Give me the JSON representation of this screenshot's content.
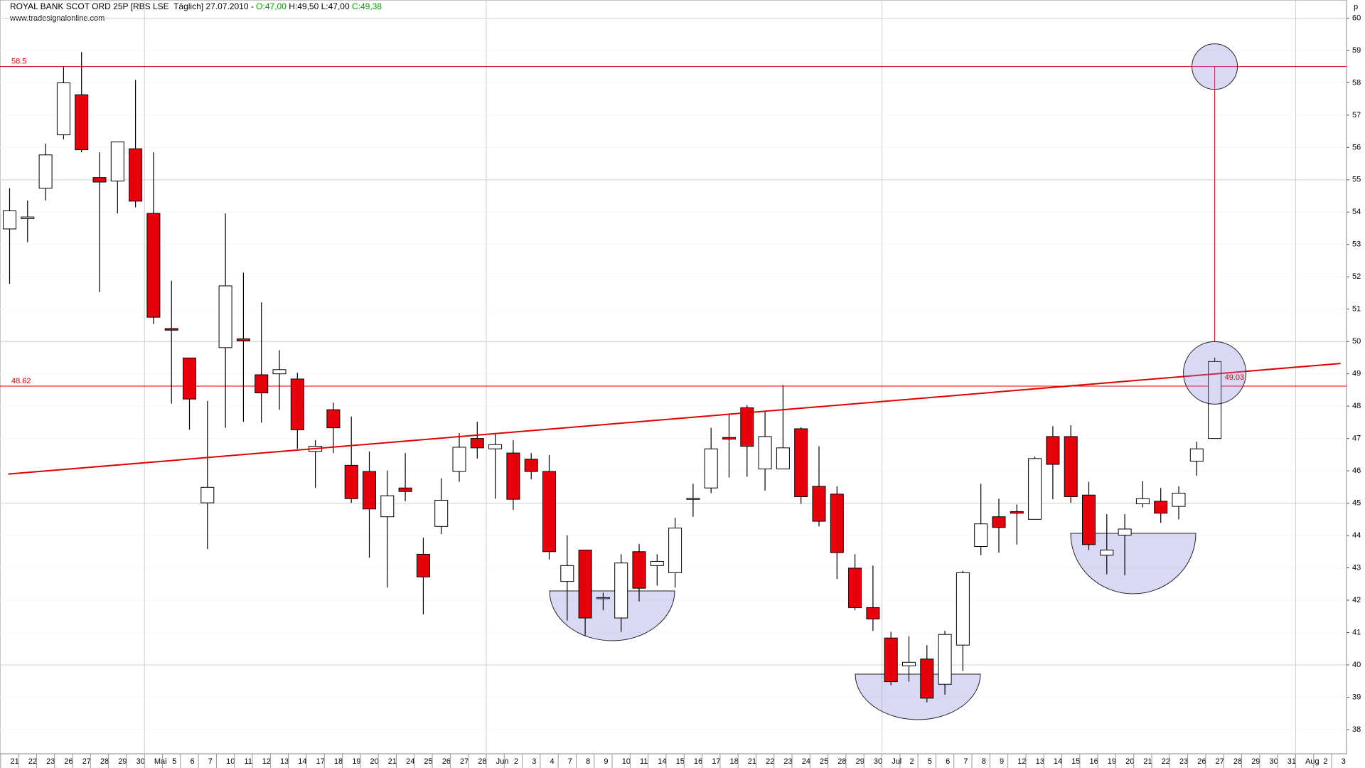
{
  "chart_data": {
    "type": "candlestick",
    "title": "ROYAL BANK SCOT ORD 25P [RBS LSE  Täglich] 27.07.2010 -",
    "ohlc_labels": [
      "O:47,00",
      "H:49,50",
      "L:47,00",
      "C:49,38"
    ],
    "subtitle": "www.tradesignalonline.com",
    "y_axis_label": "p",
    "categories": [
      "21",
      "22",
      "23",
      "26",
      "27",
      "28",
      "29",
      "30",
      "Mai",
      "5",
      "6",
      "7",
      "10",
      "11",
      "12",
      "13",
      "14",
      "17",
      "18",
      "19",
      "20",
      "21",
      "24",
      "25",
      "26",
      "27",
      "28",
      "Jun",
      "2",
      "3",
      "4",
      "7",
      "8",
      "9",
      "10",
      "11",
      "14",
      "15",
      "16",
      "17",
      "18",
      "21",
      "22",
      "23",
      "24",
      "25",
      "28",
      "29",
      "30",
      "Jul",
      "2",
      "5",
      "6",
      "7",
      "8",
      "9",
      "12",
      "13",
      "14",
      "15",
      "16",
      "19",
      "20",
      "21",
      "22",
      "23",
      "26",
      "27",
      "28",
      "29",
      "30",
      "31",
      "Aug",
      "2",
      "3"
    ],
    "open": [
      53.48,
      53.8,
      54.74,
      56.39,
      57.63,
      55.07,
      54.96,
      55.96,
      53.96,
      50.4,
      49.49,
      45.01,
      49.81,
      50.08,
      48.97,
      49.0,
      48.84,
      46.6,
      47.89,
      46.17,
      45.98,
      44.58,
      45.47,
      43.42,
      44.28,
      45.98,
      47.0,
      46.68,
      46.55,
      46.36,
      45.98,
      42.58,
      43.55,
      42.05,
      41.45,
      43.5,
      43.07,
      42.85,
      45.12,
      45.47,
      47.03,
      47.95,
      46.06,
      46.06,
      47.3,
      45.52,
      45.28,
      42.99,
      41.77,
      40.83,
      39.97,
      40.18,
      39.4,
      40.61,
      43.66,
      44.58,
      44.74,
      44.5,
      47.06,
      47.06,
      45.25,
      43.39,
      44.01,
      44.98,
      45.06,
      44.9,
      46.3,
      47.0,
      null,
      null,
      null,
      null,
      null,
      null,
      null
    ],
    "high": [
      54.74,
      54.36,
      56.12,
      58.49,
      58.95,
      55.85,
      56.17,
      58.09,
      55.85,
      51.88,
      49.49,
      48.16,
      53.96,
      52.13,
      51.21,
      49.73,
      49.03,
      46.95,
      48.11,
      47.68,
      46.6,
      46.01,
      46.55,
      43.93,
      45.77,
      47.17,
      47.52,
      47.17,
      46.95,
      46.55,
      46.49,
      44.01,
      43.55,
      42.23,
      43.42,
      43.74,
      43.42,
      44.55,
      45.6,
      47.33,
      47.76,
      48.03,
      47.84,
      48.65,
      47.35,
      46.76,
      45.52,
      43.42,
      43.07,
      41.02,
      40.88,
      40.61,
      41.05,
      42.91,
      45.6,
      45.14,
      44.96,
      46.44,
      47.38,
      47.41,
      45.66,
      44.66,
      44.66,
      45.68,
      45.47,
      45.52,
      46.9,
      49.5,
      null,
      null,
      null,
      null,
      null,
      null,
      null
    ],
    "low": [
      51.78,
      53.07,
      54.36,
      56.25,
      55.85,
      51.53,
      53.96,
      54.15,
      50.54,
      48.08,
      47.27,
      43.58,
      47.33,
      47.52,
      47.49,
      47.89,
      46.68,
      45.47,
      46.55,
      45.01,
      43.31,
      42.39,
      45.06,
      41.56,
      44.04,
      45.66,
      46.38,
      45.14,
      44.79,
      45.74,
      43.26,
      41.37,
      40.91,
      41.69,
      41.02,
      41.96,
      42.45,
      42.39,
      44.58,
      45.31,
      45.79,
      45.82,
      45.39,
      46.06,
      44.98,
      44.28,
      42.66,
      41.69,
      41.05,
      39.37,
      39.48,
      38.84,
      39.08,
      39.81,
      43.39,
      43.47,
      43.72,
      44.5,
      45.12,
      45.01,
      43.55,
      42.8,
      42.77,
      44.87,
      44.39,
      44.5,
      45.85,
      47.0,
      null,
      null,
      null,
      null,
      null,
      null,
      null
    ],
    "close": [
      54.04,
      53.85,
      55.77,
      58.0,
      55.93,
      54.93,
      56.17,
      54.34,
      50.75,
      50.35,
      48.22,
      45.49,
      51.72,
      50.02,
      48.41,
      49.13,
      47.27,
      46.76,
      47.33,
      45.14,
      44.82,
      45.23,
      45.36,
      42.72,
      45.09,
      46.73,
      46.71,
      46.81,
      45.12,
      45.98,
      43.5,
      43.07,
      41.45,
      42.08,
      43.15,
      42.37,
      43.2,
      44.23,
      45.15,
      46.68,
      46.98,
      46.76,
      47.06,
      46.71,
      45.2,
      44.44,
      43.47,
      41.77,
      41.42,
      39.48,
      40.08,
      38.97,
      40.94,
      42.85,
      44.36,
      44.25,
      44.69,
      46.38,
      46.2,
      45.2,
      43.72,
      43.55,
      44.2,
      45.14,
      44.69,
      45.31,
      46.68,
      49.38,
      null,
      null,
      null,
      null,
      null,
      null,
      null
    ],
    "up_color": "#ffffff",
    "down_color": "#e8000b",
    "ylim": [
      37.25,
      60.56
    ],
    "yticks": [
      38,
      39,
      40,
      41,
      42,
      43,
      44,
      45,
      46,
      47,
      48,
      49,
      50,
      51,
      52,
      53,
      54,
      55,
      56,
      57,
      58,
      59,
      60
    ],
    "ygrid": [
      40,
      45,
      50,
      55,
      60
    ],
    "levels": [
      58.5,
      48.62
    ],
    "trendline": {
      "start": 45.9,
      "end": 49.32,
      "label": 49.03
    }
  }
}
